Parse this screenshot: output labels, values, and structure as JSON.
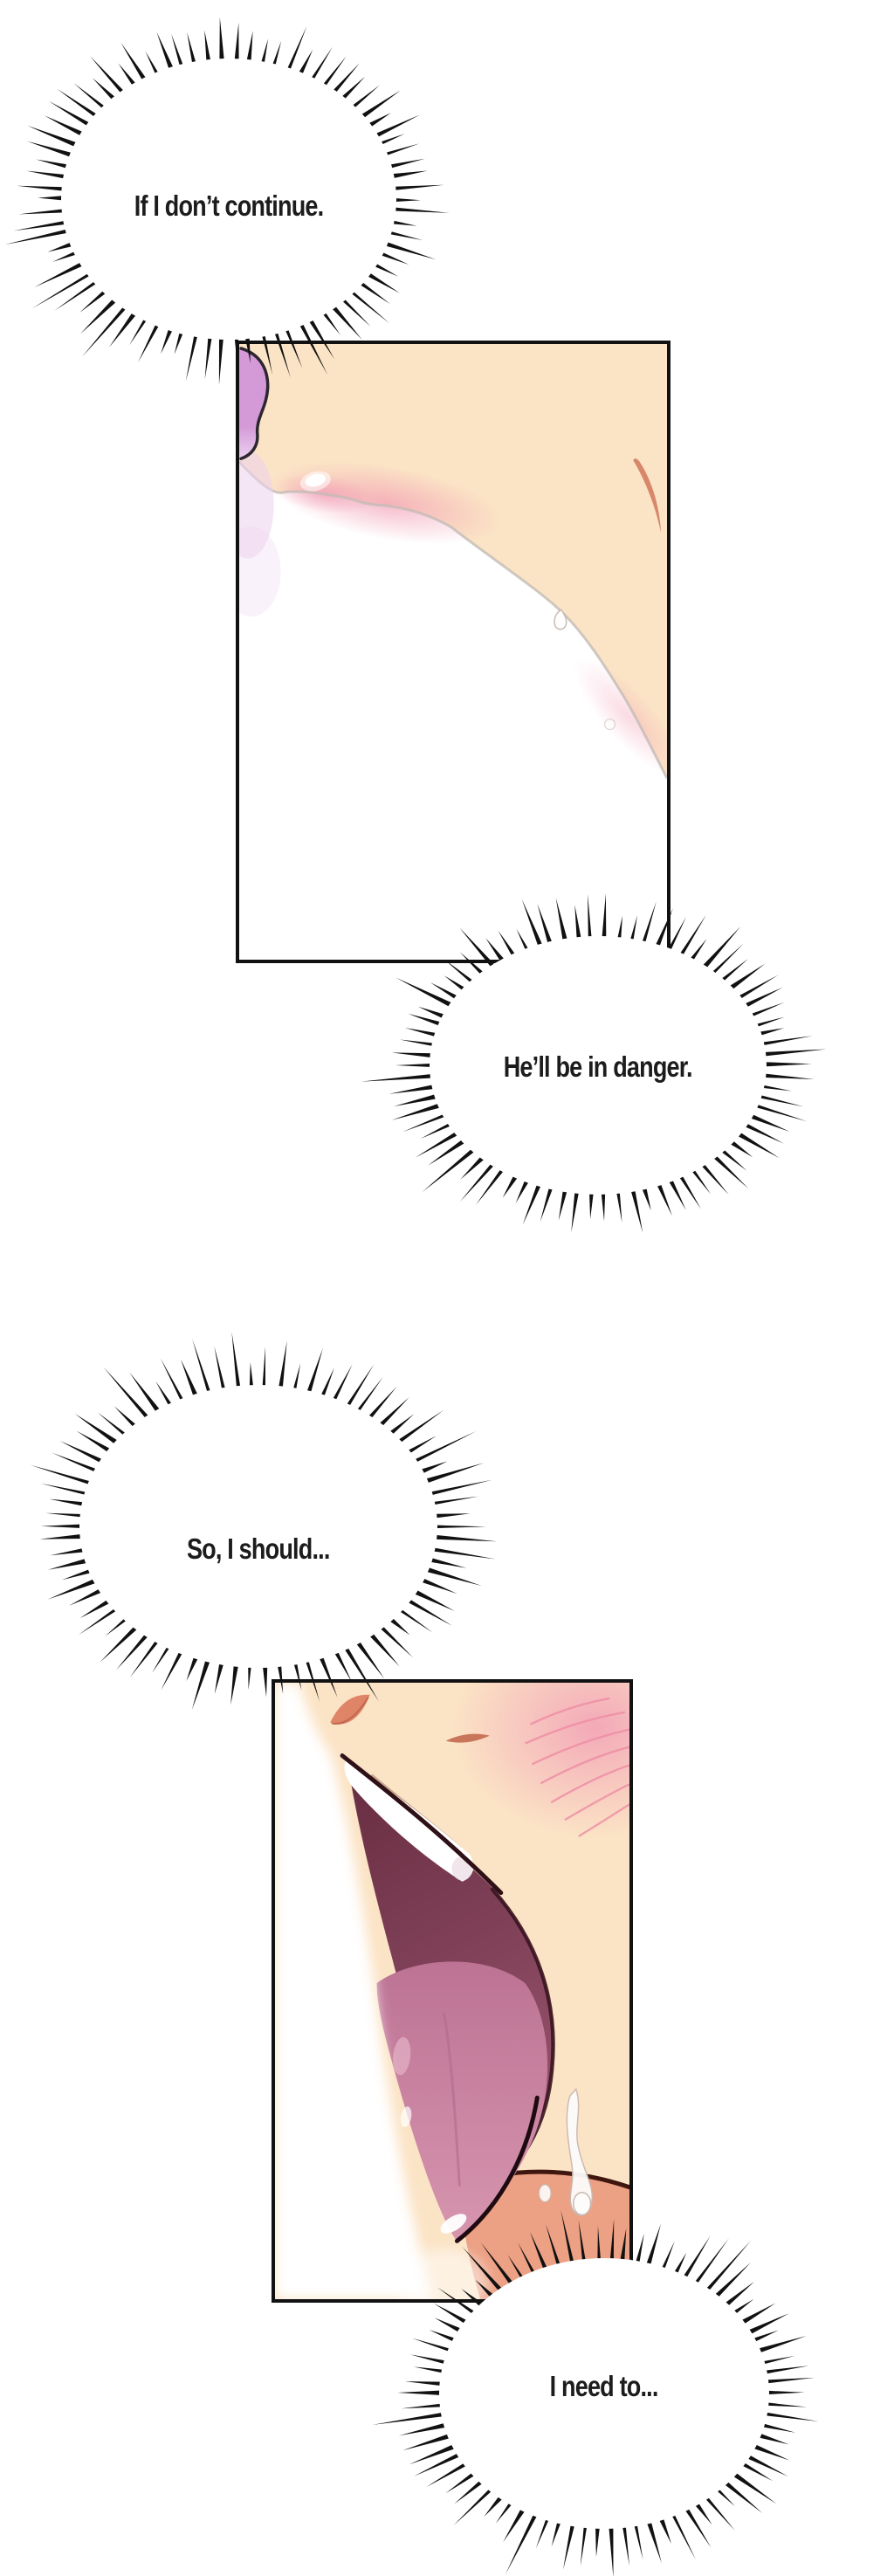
{
  "bubbles": [
    {
      "text": "If I don’t continue."
    },
    {
      "text": "He’ll be in danger."
    },
    {
      "text": "So, I should..."
    },
    {
      "text": "I need to..."
    }
  ],
  "colors": {
    "paper": "#ffffff",
    "ink": "#111111",
    "text": "#1c1c1c",
    "skin": "#fbe3c5",
    "blush": "#f29fb6",
    "blush_streak": "#ee8da4",
    "hair_purple": "#d49ad8",
    "hair_purple_light": "#ecd2ee",
    "eyebrow": "#d8876b",
    "edge_gray": "#c3bcb6",
    "mouth_dark": "#672c40",
    "mouth_mid": "#95536c",
    "tongue": "#bd7394",
    "tongue_light": "#d695ae",
    "jaw_salmon": "#eca084",
    "jaw_line": "#40170f",
    "drip": "#c9b8b0"
  }
}
